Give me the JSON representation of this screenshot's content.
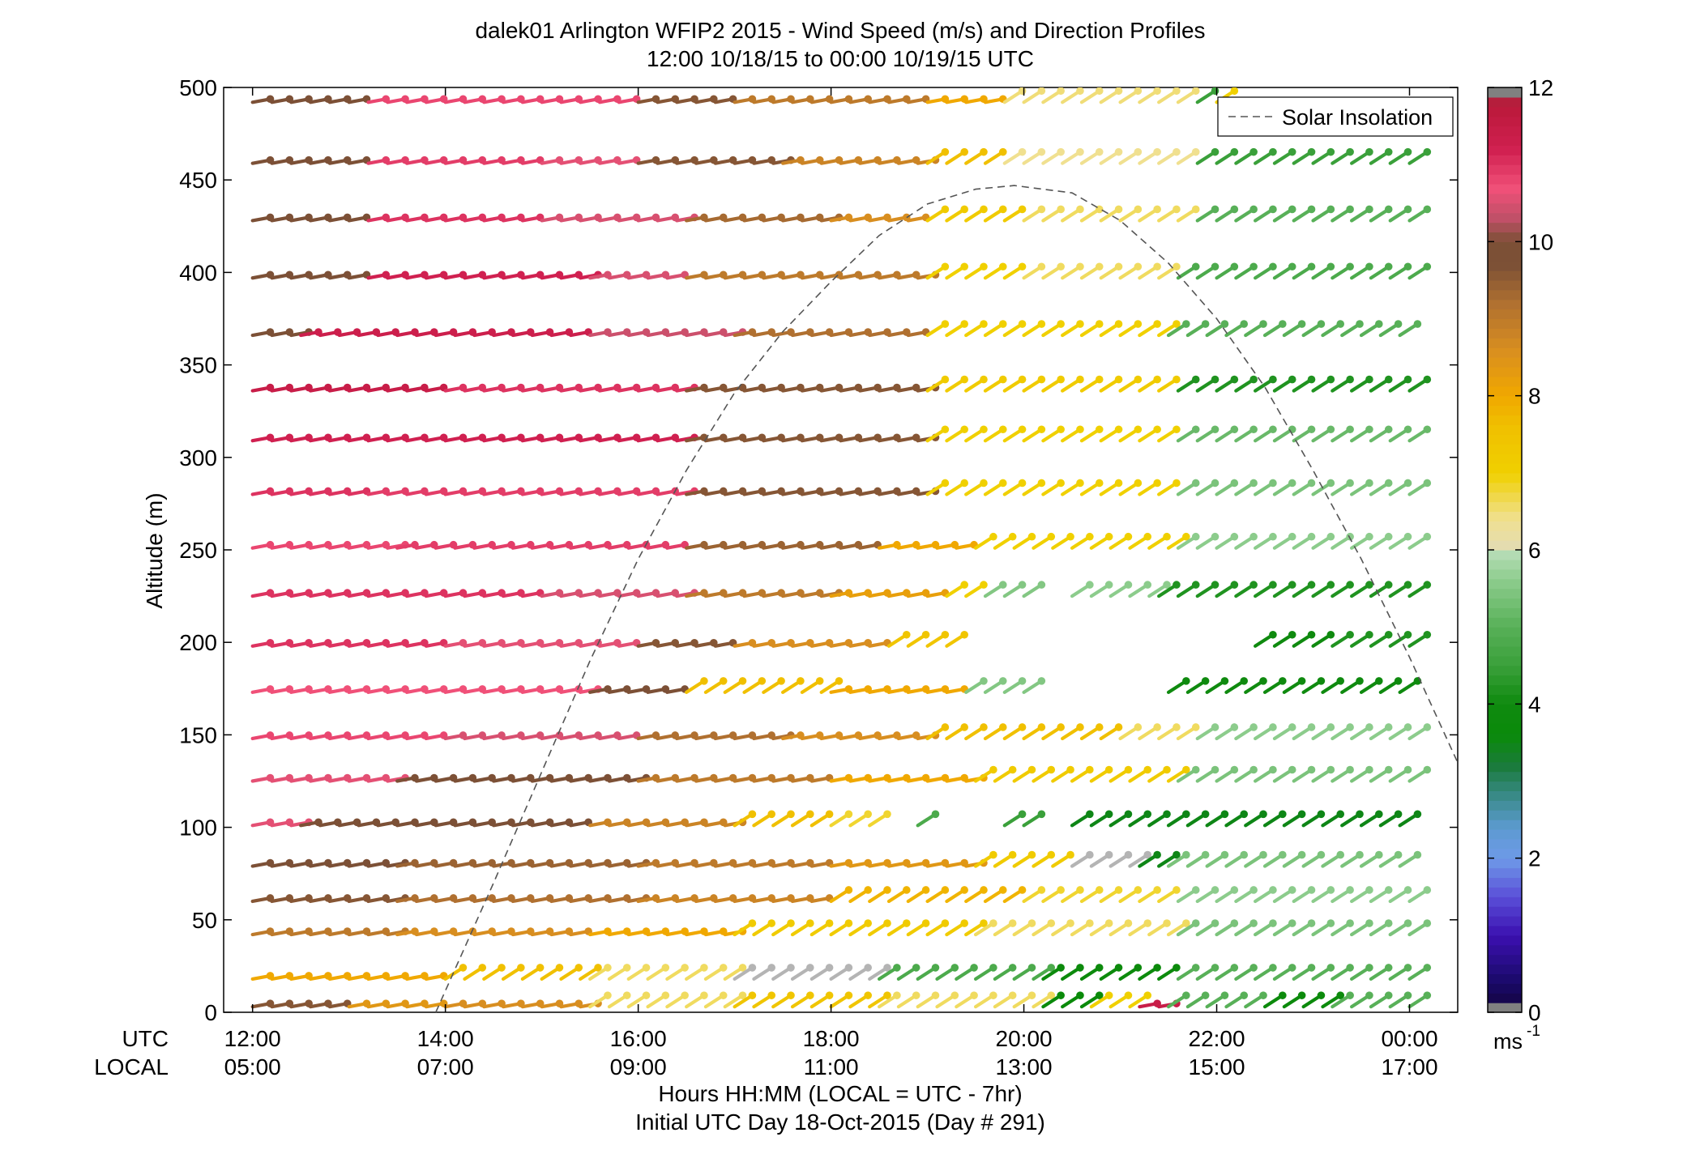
{
  "chart_data": {
    "type": "scatter",
    "plot_style": "wind barbs (direction ticks) colored by speed, with dashed overlay line",
    "title": "dalek01 Arlington WFIP2 2015 - Wind Speed (m/s) and Direction Profiles",
    "subtitle": "12:00 10/18/15 to 00:00 10/19/15  UTC",
    "ylabel": "Altitude (m)",
    "xlabel": "Hours HH:MM  (LOCAL = UTC - 7hr)",
    "xlabel2": "Initial UTC Day 18-Oct-2015 (Day # 291)",
    "x_row_labels": {
      "utc": "UTC",
      "local": "LOCAL"
    },
    "utc_ticks": [
      "12:00",
      "14:00",
      "16:00",
      "18:00",
      "20:00",
      "22:00",
      "00:00"
    ],
    "local_ticks": [
      "05:00",
      "07:00",
      "09:00",
      "11:00",
      "13:00",
      "15:00",
      "17:00"
    ],
    "xlim_hours_utc": [
      11.7,
      24.5
    ],
    "ylim": [
      0,
      500
    ],
    "yticks": [
      0,
      50,
      100,
      150,
      200,
      250,
      300,
      350,
      400,
      450,
      500
    ],
    "legend": {
      "label": "Solar Insolation",
      "placement": "top-right"
    },
    "colorbar": {
      "unit_label": "ms",
      "unit_exponent": "-1",
      "ticks": [
        0,
        2,
        4,
        6,
        8,
        10,
        12
      ],
      "range": [
        0,
        12
      ]
    },
    "solar_insolation_peak_utc_hour": 19.9,
    "solar_insolation_peak_altitude_m": 447,
    "solar_insolation_profile": [
      {
        "x": 13.9,
        "y": 0
      },
      {
        "x": 14.5,
        "y": 70
      },
      {
        "x": 15.0,
        "y": 130
      },
      {
        "x": 15.5,
        "y": 190
      },
      {
        "x": 16.0,
        "y": 245
      },
      {
        "x": 16.5,
        "y": 293
      },
      {
        "x": 17.0,
        "y": 335
      },
      {
        "x": 17.5,
        "y": 368
      },
      {
        "x": 18.0,
        "y": 395
      },
      {
        "x": 18.5,
        "y": 420
      },
      {
        "x": 19.0,
        "y": 437
      },
      {
        "x": 19.5,
        "y": 445
      },
      {
        "x": 19.9,
        "y": 447
      },
      {
        "x": 20.5,
        "y": 443
      },
      {
        "x": 21.0,
        "y": 428
      },
      {
        "x": 21.5,
        "y": 405
      },
      {
        "x": 22.0,
        "y": 375
      },
      {
        "x": 22.5,
        "y": 338
      },
      {
        "x": 23.0,
        "y": 293
      },
      {
        "x": 23.5,
        "y": 245
      },
      {
        "x": 24.0,
        "y": 192
      },
      {
        "x": 24.5,
        "y": 135
      }
    ],
    "levels_m": [
      3,
      18,
      42,
      60,
      79,
      101,
      125,
      148,
      173,
      198,
      225,
      251,
      280,
      309,
      336,
      366,
      397,
      428,
      459,
      492
    ],
    "time_step_minutes": 12,
    "speed_segments_ms": [
      {
        "level": 492,
        "segments": [
          [
            12.0,
            13.2,
            9.9
          ],
          [
            13.2,
            15.0,
            10.8
          ],
          [
            15.0,
            16.0,
            10.8
          ],
          [
            16.0,
            17.0,
            9.6
          ],
          [
            17.0,
            19.0,
            9.0
          ],
          [
            19.0,
            19.8,
            8.0
          ],
          [
            19.8,
            21.8,
            6.5
          ],
          [
            21.8,
            22.0,
            4.5
          ],
          [
            22.0,
            22.2,
            7.0
          ]
        ]
      },
      {
        "level": 459,
        "segments": [
          [
            12.0,
            13.2,
            9.9
          ],
          [
            13.2,
            15.0,
            10.9
          ],
          [
            15.0,
            16.0,
            10.6
          ],
          [
            16.0,
            17.5,
            9.6
          ],
          [
            17.5,
            19.0,
            8.8
          ],
          [
            19.0,
            19.8,
            7.6
          ],
          [
            19.8,
            21.8,
            6.4
          ],
          [
            21.8,
            24.1,
            4.5
          ]
        ]
      },
      {
        "level": 428,
        "segments": [
          [
            12.0,
            13.2,
            9.9
          ],
          [
            13.2,
            15.0,
            11.0
          ],
          [
            15.0,
            16.5,
            10.5
          ],
          [
            16.5,
            18.0,
            9.3
          ],
          [
            18.0,
            19.0,
            8.6
          ],
          [
            19.0,
            20.0,
            7.2
          ],
          [
            20.0,
            21.8,
            6.6
          ],
          [
            21.8,
            24.1,
            5.0
          ]
        ]
      },
      {
        "level": 397,
        "segments": [
          [
            12.0,
            13.2,
            9.9
          ],
          [
            13.2,
            15.5,
            11.2
          ],
          [
            15.5,
            16.5,
            10.5
          ],
          [
            16.5,
            19.0,
            9.0
          ],
          [
            19.0,
            20.0,
            7.0
          ],
          [
            20.0,
            21.6,
            6.6
          ],
          [
            21.6,
            24.1,
            4.8
          ]
        ]
      },
      {
        "level": 366,
        "segments": [
          [
            12.0,
            12.5,
            9.9
          ],
          [
            12.5,
            15.5,
            11.3
          ],
          [
            15.5,
            17.0,
            10.4
          ],
          [
            17.0,
            19.0,
            9.2
          ],
          [
            19.0,
            21.5,
            7.0
          ],
          [
            21.5,
            24.1,
            5.0
          ]
        ]
      },
      {
        "level": 336,
        "segments": [
          [
            12.0,
            14.0,
            11.4
          ],
          [
            14.0,
            16.5,
            11.0
          ],
          [
            16.5,
            19.0,
            9.6
          ],
          [
            19.0,
            21.6,
            7.2
          ],
          [
            21.6,
            24.1,
            4.2
          ]
        ]
      },
      {
        "level": 309,
        "segments": [
          [
            12.0,
            13.2,
            11.2
          ],
          [
            13.2,
            16.5,
            11.2
          ],
          [
            16.5,
            19.0,
            9.6
          ],
          [
            19.0,
            21.6,
            7.0
          ],
          [
            21.6,
            24.1,
            5.2
          ]
        ]
      },
      {
        "level": 280,
        "segments": [
          [
            12.0,
            13.2,
            11.0
          ],
          [
            13.2,
            16.5,
            10.9
          ],
          [
            16.5,
            19.0,
            9.6
          ],
          [
            19.0,
            21.6,
            7.0
          ],
          [
            21.6,
            24.1,
            5.4
          ]
        ]
      },
      {
        "level": 251,
        "segments": [
          [
            12.0,
            13.5,
            10.8
          ],
          [
            13.5,
            16.5,
            10.9
          ],
          [
            16.5,
            18.5,
            9.4
          ],
          [
            18.5,
            19.5,
            8.0
          ],
          [
            19.5,
            21.6,
            7.0
          ],
          [
            21.6,
            24.1,
            5.6
          ]
        ]
      },
      {
        "level": 225,
        "segments": [
          [
            12.0,
            15.0,
            11.0
          ],
          [
            15.0,
            16.5,
            10.5
          ],
          [
            16.5,
            18.0,
            9.0
          ],
          [
            18.0,
            19.2,
            8.2
          ],
          [
            19.2,
            19.6,
            7.0
          ],
          [
            19.6,
            20.1,
            5.5
          ],
          [
            20.5,
            21.4,
            5.6
          ],
          [
            21.4,
            24.1,
            4.2
          ]
        ]
      },
      {
        "level": 198,
        "segments": [
          [
            12.0,
            14.0,
            11.0
          ],
          [
            14.0,
            16.0,
            10.6
          ],
          [
            16.0,
            17.0,
            9.6
          ],
          [
            17.0,
            18.6,
            8.6
          ],
          [
            18.6,
            19.3,
            7.4
          ],
          [
            22.4,
            23.2,
            4.0
          ],
          [
            23.2,
            24.1,
            4.2
          ]
        ]
      },
      {
        "level": 173,
        "segments": [
          [
            12.0,
            15.5,
            10.7
          ],
          [
            15.5,
            16.5,
            9.9
          ],
          [
            16.5,
            18.0,
            7.6
          ],
          [
            18.0,
            19.4,
            8.0
          ],
          [
            19.4,
            20.1,
            5.5
          ],
          [
            21.5,
            24.1,
            4.0
          ]
        ]
      },
      {
        "level": 148,
        "segments": [
          [
            12.0,
            14.0,
            10.8
          ],
          [
            14.0,
            16.0,
            10.5
          ],
          [
            16.0,
            17.5,
            9.2
          ],
          [
            17.5,
            19.0,
            8.6
          ],
          [
            19.0,
            21.0,
            7.6
          ],
          [
            21.0,
            21.8,
            6.6
          ],
          [
            21.8,
            24.1,
            5.6
          ]
        ]
      },
      {
        "level": 125,
        "segments": [
          [
            12.0,
            13.5,
            10.6
          ],
          [
            13.5,
            16.0,
            9.8
          ],
          [
            16.0,
            18.0,
            9.0
          ],
          [
            18.0,
            19.5,
            8.0
          ],
          [
            19.5,
            21.6,
            7.2
          ],
          [
            21.6,
            24.1,
            5.4
          ]
        ]
      },
      {
        "level": 101,
        "segments": [
          [
            12.0,
            12.5,
            10.6
          ],
          [
            12.5,
            15.5,
            9.8
          ],
          [
            15.5,
            17.0,
            8.8
          ],
          [
            17.0,
            18.0,
            7.6
          ],
          [
            18.0,
            18.6,
            6.8
          ],
          [
            18.9,
            19.1,
            4.8
          ],
          [
            19.8,
            20.1,
            4.5
          ],
          [
            20.5,
            24.1,
            3.5
          ]
        ]
      },
      {
        "level": 79,
        "segments": [
          [
            12.0,
            13.5,
            9.8
          ],
          [
            13.5,
            16.0,
            9.4
          ],
          [
            16.0,
            18.0,
            9.0
          ],
          [
            18.0,
            19.5,
            8.4
          ],
          [
            19.5,
            20.5,
            7.2
          ],
          [
            20.5,
            21.2,
            6.0
          ],
          [
            21.2,
            21.5,
            3.5
          ],
          [
            21.5,
            24.1,
            5.4
          ]
        ]
      },
      {
        "level": 60,
        "segments": [
          [
            12.0,
            13.5,
            9.6
          ],
          [
            13.5,
            16.0,
            9.2
          ],
          [
            16.0,
            18.0,
            8.8
          ],
          [
            18.0,
            20.0,
            7.8
          ],
          [
            20.0,
            21.6,
            6.8
          ],
          [
            21.6,
            24.1,
            5.6
          ]
        ]
      },
      {
        "level": 42,
        "segments": [
          [
            12.0,
            13.5,
            9.0
          ],
          [
            13.5,
            15.5,
            8.6
          ],
          [
            15.5,
            17.0,
            8.0
          ],
          [
            17.0,
            19.5,
            7.2
          ],
          [
            19.5,
            21.6,
            6.6
          ],
          [
            21.6,
            24.1,
            5.4
          ]
        ]
      },
      {
        "level": 18,
        "segments": [
          [
            12.0,
            14.0,
            8.0
          ],
          [
            14.0,
            15.5,
            7.6
          ],
          [
            15.5,
            17.0,
            6.6
          ],
          [
            17.0,
            18.5,
            6.0
          ],
          [
            18.5,
            20.2,
            4.8
          ],
          [
            20.2,
            21.6,
            3.8
          ],
          [
            21.6,
            24.1,
            5.0
          ]
        ]
      },
      {
        "level": 3,
        "segments": [
          [
            12.0,
            13.0,
            9.6
          ],
          [
            13.0,
            14.0,
            8.4
          ],
          [
            14.0,
            15.5,
            8.6
          ],
          [
            15.5,
            17.0,
            6.6
          ],
          [
            17.0,
            18.5,
            7.4
          ],
          [
            18.5,
            20.2,
            6.6
          ],
          [
            20.2,
            20.7,
            3.6
          ],
          [
            20.7,
            21.2,
            7.0
          ],
          [
            21.2,
            21.5,
            11.4
          ],
          [
            21.5,
            22.5,
            5.0
          ],
          [
            22.5,
            23.2,
            3.8
          ],
          [
            23.2,
            24.1,
            5.0
          ]
        ]
      }
    ]
  }
}
